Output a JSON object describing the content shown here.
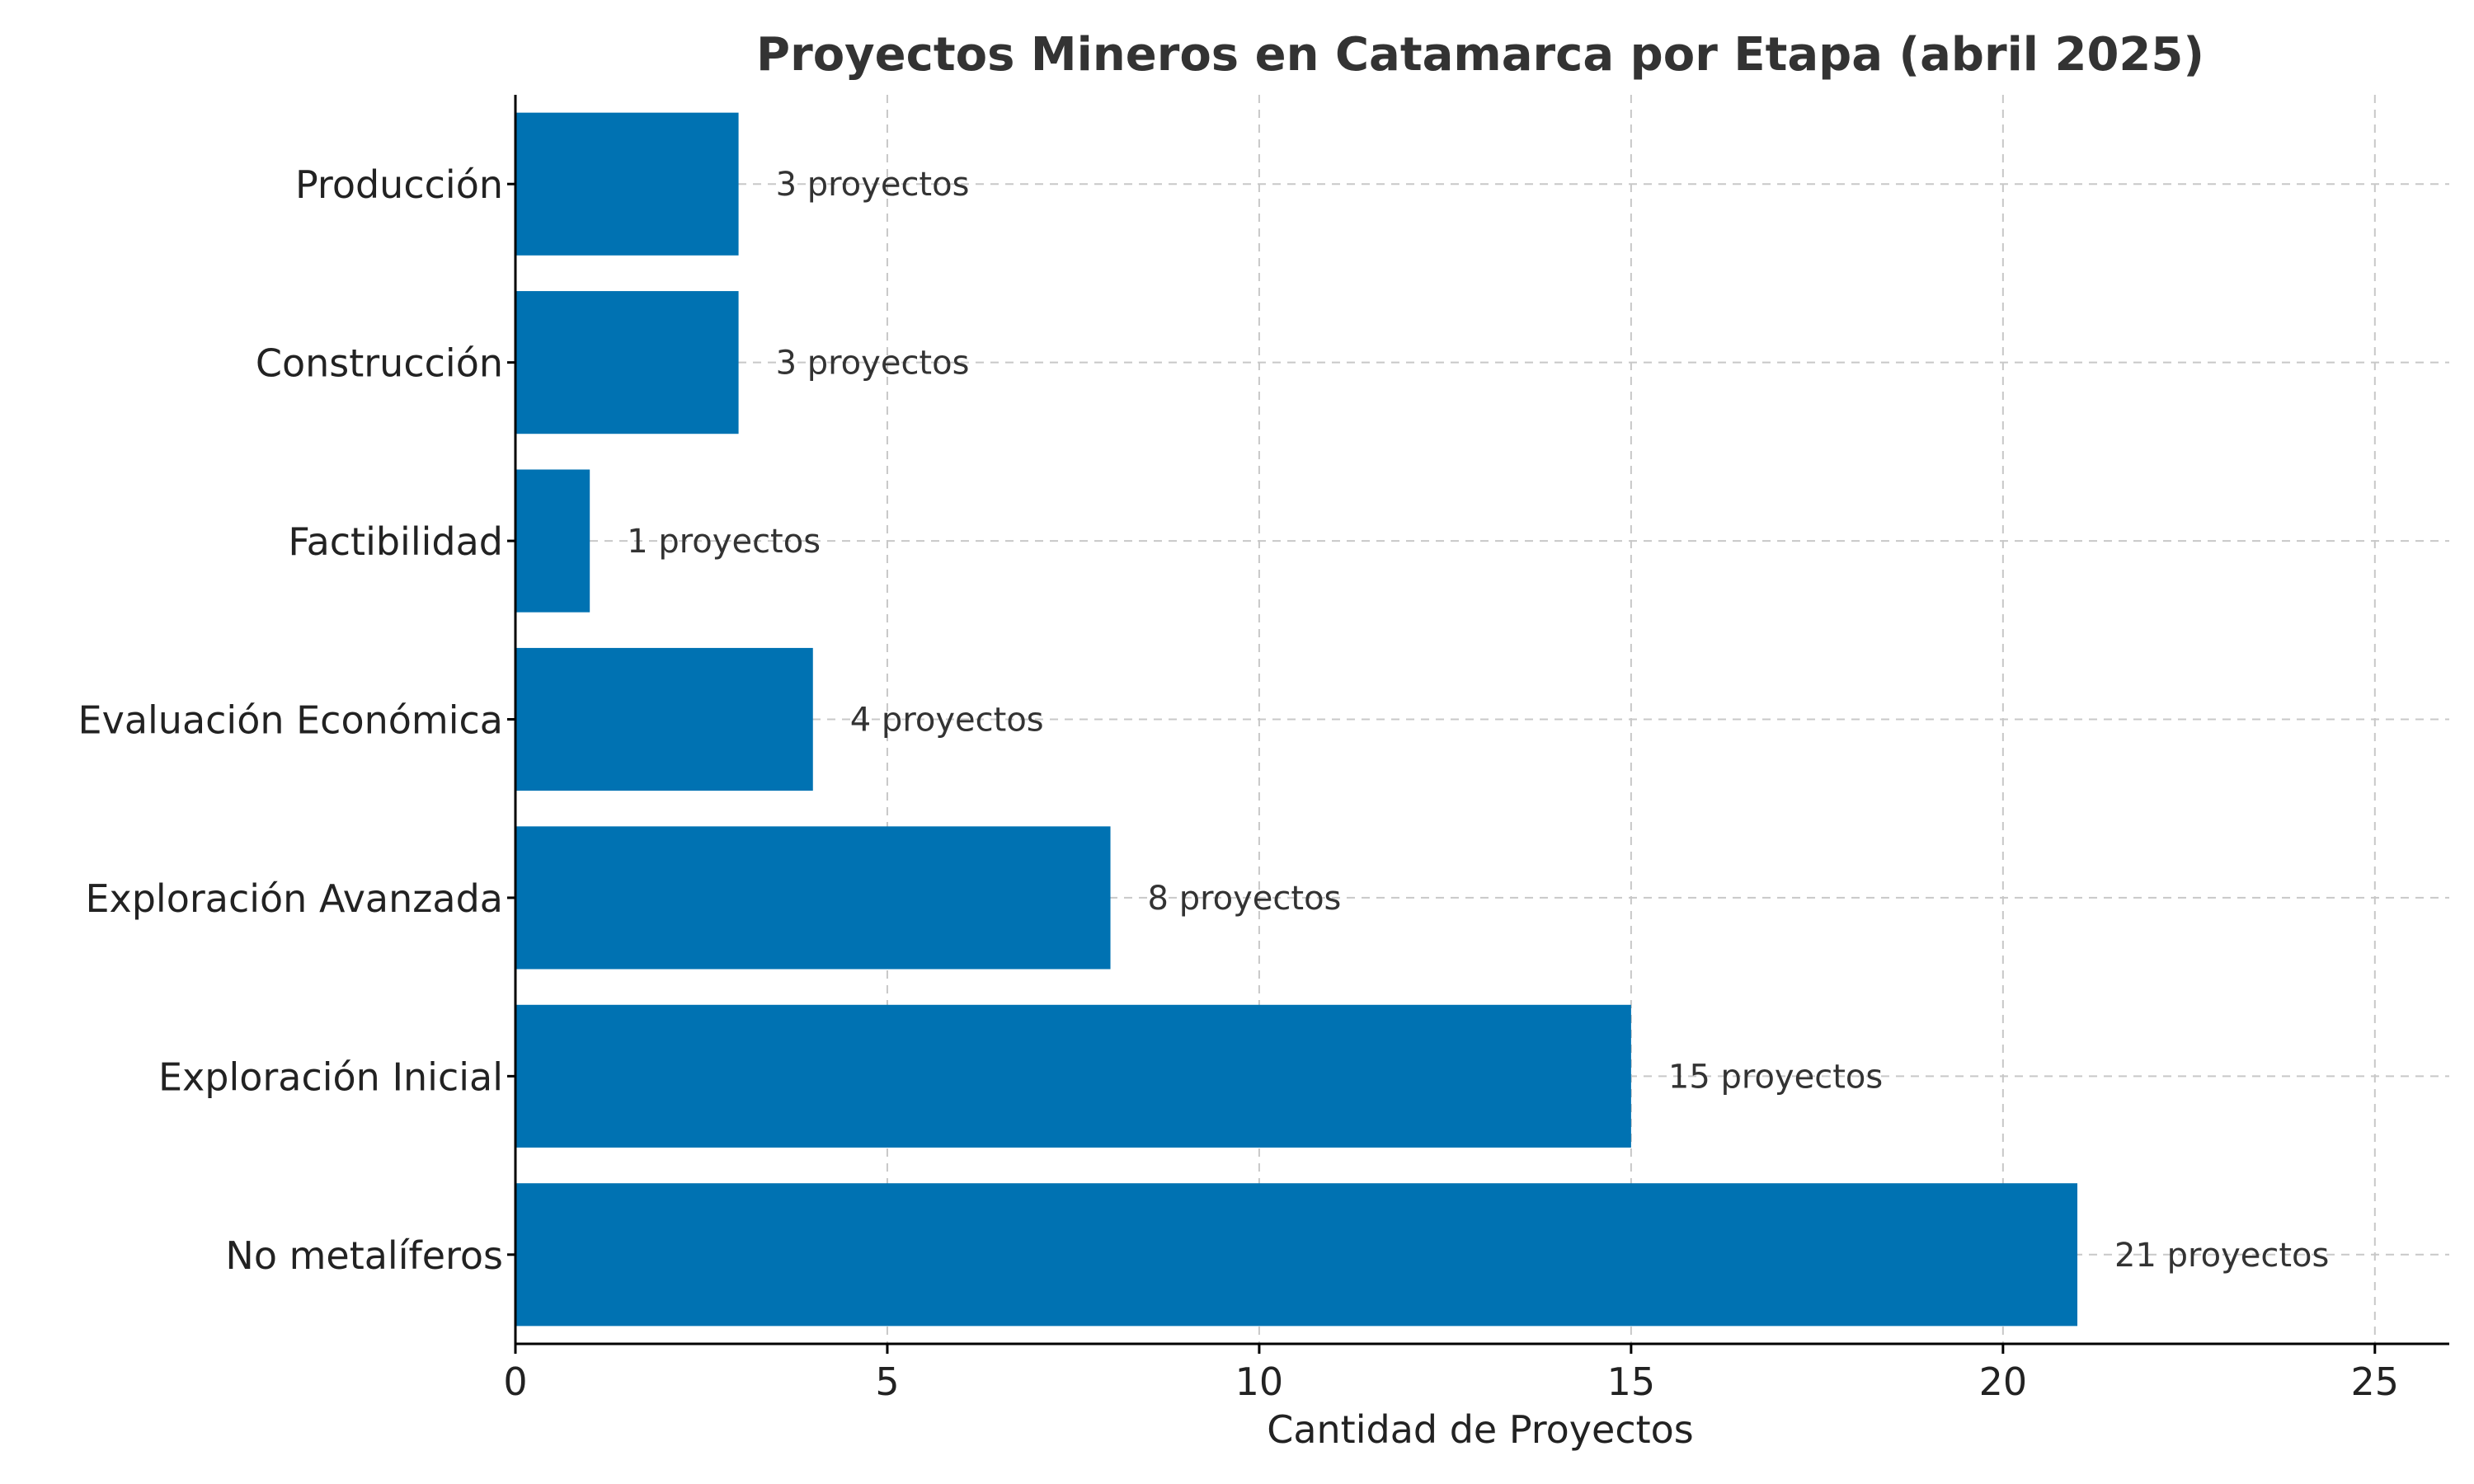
{
  "chart_data": {
    "type": "bar",
    "orientation": "horizontal",
    "title": "Proyectos Mineros en Catamarca por Etapa (abril 2025)",
    "xlabel": "Cantidad de Proyectos",
    "ylabel": "",
    "categories": [
      "Producción",
      "Construcción",
      "Factibilidad",
      "Evaluación Económica",
      "Exploración Avanzada",
      "Exploración Inicial",
      "No metalíferos"
    ],
    "values": [
      3,
      3,
      1,
      4,
      8,
      15,
      21
    ],
    "data_labels": [
      "3 proyectos",
      "3 proyectos",
      "1 proyectos",
      "4 proyectos",
      "8 proyectos",
      "15 proyectos",
      "21 proyectos"
    ],
    "xlim": [
      0,
      26
    ],
    "xticks": [
      0,
      5,
      10,
      15,
      20,
      25
    ],
    "grid": true,
    "bar_color": "#0072B2"
  }
}
